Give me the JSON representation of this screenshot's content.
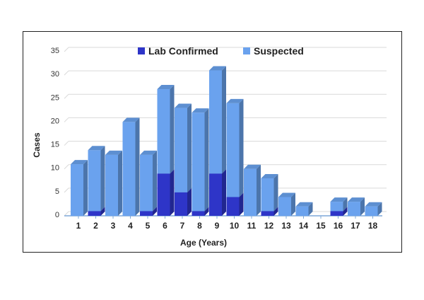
{
  "chart_data": {
    "type": "bar",
    "stacked": true,
    "three_d": true,
    "title": "",
    "xlabel": "Age (Years)",
    "ylabel": "Cases",
    "ylim": [
      0,
      35
    ],
    "yticks": [
      0,
      5,
      10,
      15,
      20,
      25,
      30,
      35
    ],
    "grid": true,
    "legend_position": "top",
    "categories": [
      "1",
      "2",
      "3",
      "4",
      "5",
      "6",
      "7",
      "8",
      "9",
      "10",
      "11",
      "12",
      "13",
      "14",
      "15",
      "16",
      "17",
      "18"
    ],
    "series": [
      {
        "name": "Lab Confirmed",
        "color": "#2e35c8",
        "values": [
          0,
          1,
          0,
          0,
          1,
          9,
          5,
          1,
          9,
          4,
          0,
          1,
          0,
          0,
          0,
          1,
          0,
          0
        ]
      },
      {
        "name": "Suspected",
        "color": "#6aa2ee",
        "values": [
          11,
          13,
          13,
          20,
          12,
          18,
          18,
          21,
          22,
          20,
          10,
          7,
          4,
          2,
          0,
          2,
          3,
          2
        ]
      }
    ]
  }
}
